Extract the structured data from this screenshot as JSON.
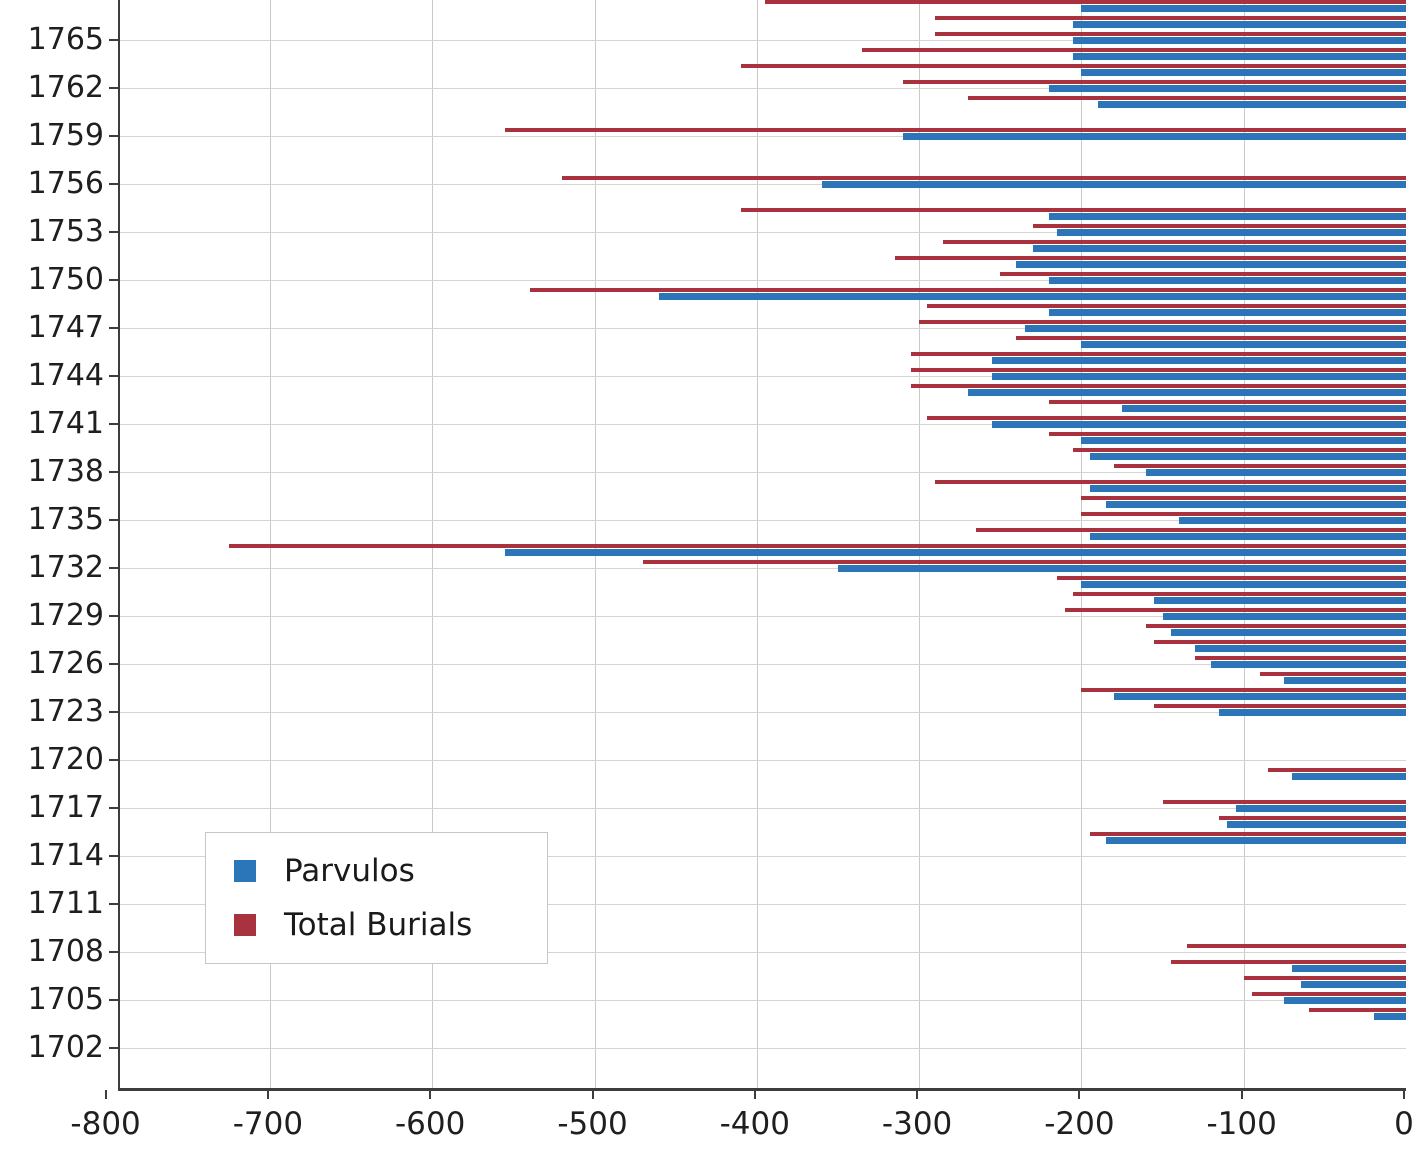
{
  "chart_data": {
    "type": "bar",
    "orientation": "horizontal",
    "title": "",
    "xlabel": "",
    "ylabel": "",
    "grid": true,
    "legend_position": "lower-left",
    "xlim": [
      -792,
      0
    ],
    "x_ticks": [
      -800,
      -700,
      -600,
      -500,
      -400,
      -300,
      -200,
      -100,
      0
    ],
    "y_ticks": [
      1702,
      1705,
      1708,
      1711,
      1714,
      1717,
      1720,
      1723,
      1726,
      1729,
      1732,
      1735,
      1738,
      1741,
      1744,
      1747,
      1750,
      1753,
      1756,
      1759,
      1762,
      1765
    ],
    "years": [
      1702,
      1703,
      1704,
      1705,
      1706,
      1707,
      1708,
      1709,
      1710,
      1711,
      1712,
      1713,
      1714,
      1715,
      1716,
      1717,
      1718,
      1719,
      1720,
      1721,
      1722,
      1723,
      1724,
      1725,
      1726,
      1727,
      1728,
      1729,
      1730,
      1731,
      1732,
      1733,
      1734,
      1735,
      1736,
      1737,
      1738,
      1739,
      1740,
      1741,
      1742,
      1743,
      1744,
      1745,
      1746,
      1747,
      1748,
      1749,
      1750,
      1751,
      1752,
      1753,
      1754,
      1755,
      1756,
      1757,
      1758,
      1759,
      1760,
      1761,
      1762,
      1763,
      1764,
      1765,
      1766,
      1767
    ],
    "series": [
      {
        "name": "Parvulos",
        "color": "#2b76b9",
        "values": [
          0,
          0,
          -20,
          -75,
          -65,
          -70,
          0,
          0,
          0,
          0,
          0,
          0,
          0,
          -185,
          -110,
          -105,
          0,
          -70,
          0,
          0,
          0,
          -115,
          -180,
          -75,
          -120,
          -130,
          -145,
          -150,
          -155,
          -200,
          -350,
          -555,
          -195,
          -140,
          -185,
          -195,
          -160,
          -195,
          -200,
          -255,
          -175,
          -270,
          -255,
          -255,
          -200,
          -235,
          -220,
          -460,
          -220,
          -240,
          -230,
          -215,
          -220,
          0,
          -360,
          0,
          0,
          -310,
          0,
          -190,
          -220,
          -200,
          -205,
          -205,
          -205,
          -200
        ]
      },
      {
        "name": "Total Burials",
        "color": "#a8323e",
        "values": [
          0,
          0,
          -60,
          -95,
          -100,
          -145,
          -135,
          0,
          0,
          0,
          0,
          0,
          0,
          -195,
          -115,
          -150,
          0,
          -85,
          0,
          0,
          0,
          -155,
          -200,
          -90,
          -130,
          -155,
          -160,
          -210,
          -205,
          -215,
          -470,
          -725,
          -265,
          -200,
          -200,
          -290,
          -180,
          -205,
          -220,
          -295,
          -220,
          -305,
          -305,
          -305,
          -240,
          -300,
          -295,
          -540,
          -250,
          -315,
          -285,
          -230,
          -410,
          0,
          -520,
          0,
          0,
          -555,
          0,
          -270,
          -310,
          -410,
          -335,
          -290,
          -290,
          -395
        ]
      }
    ]
  },
  "legend": {
    "items": [
      {
        "label": "Parvulos"
      },
      {
        "label": "Total Burials"
      }
    ]
  }
}
